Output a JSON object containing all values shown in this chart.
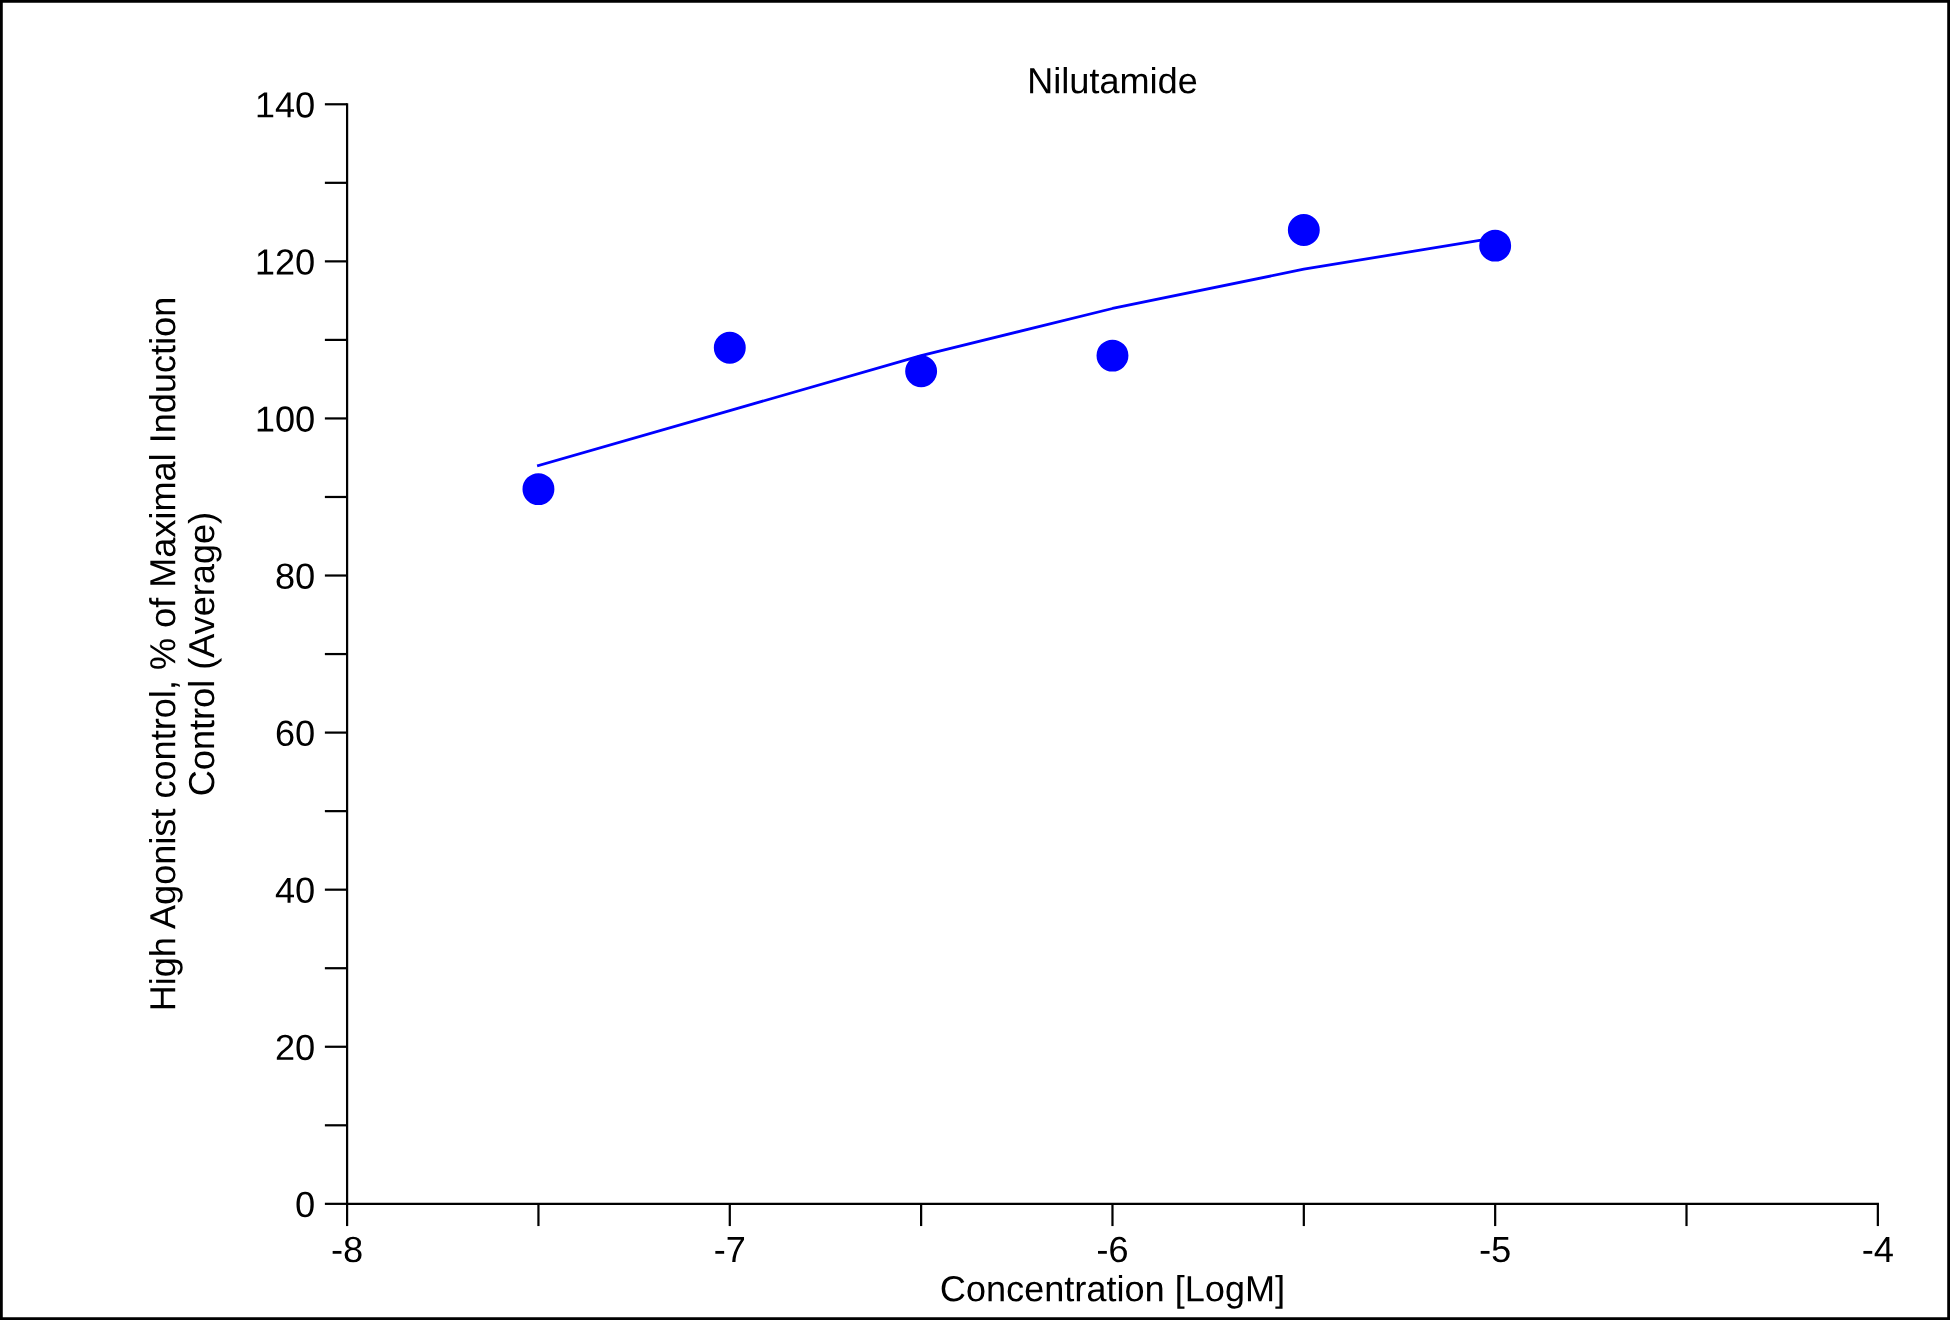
{
  "chart_data": {
    "type": "scatter",
    "title": "Nilutamide",
    "xlabel": "Concentration [LogM]",
    "ylabel": "High Agonist control, % of Maximal Induction\nControl (Average)",
    "series": [
      {
        "color": "#0000ff",
        "marker": "circle",
        "x": [
          -7.5,
          -7,
          -6.5,
          -6,
          -5.5,
          -5
        ],
        "values": [
          91,
          109,
          106,
          108,
          124,
          122
        ]
      },
      {
        "type": "line",
        "color": "#0000ff",
        "line_style": "solid",
        "marker": "none",
        "x": [
          -7.5,
          -7,
          -6.5,
          -6,
          -5.5,
          -5
        ],
        "values": [
          94,
          101,
          108,
          114,
          119,
          123
        ]
      }
    ],
    "xlim": [
      -8,
      -4
    ],
    "xticks": [
      -8,
      {
        "value": -7.5,
        "label": null
      },
      -7,
      {
        "value": -6.5,
        "label": null
      },
      -6,
      {
        "value": -5.5,
        "label": null
      },
      -5,
      {
        "value": -4.5,
        "label": null
      },
      -4
    ],
    "ylim": [
      0,
      140
    ],
    "yticks": [
      0,
      {
        "value": 10,
        "label": null
      },
      20,
      {
        "value": 30,
        "label": null
      },
      40,
      {
        "value": 50,
        "label": null
      },
      60,
      {
        "value": 70,
        "label": null
      },
      80,
      {
        "value": 90,
        "label": null
      },
      100,
      {
        "value": 110,
        "label": null
      },
      120,
      {
        "value": 130,
        "label": null
      },
      140
    ],
    "grid": false,
    "legend": false
  }
}
